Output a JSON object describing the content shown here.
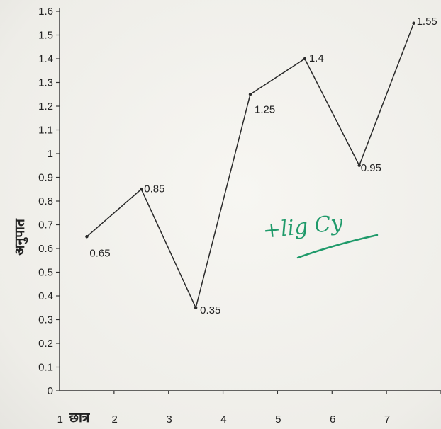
{
  "chart_data": {
    "type": "line",
    "title": "",
    "xlabel": "छात्र",
    "ylabel": "अनुपात",
    "x_ticks": [
      "1",
      "2",
      "3",
      "4",
      "5",
      "6",
      "7"
    ],
    "x": [
      0.5,
      1.5,
      2.5,
      3.5,
      4.5,
      5.5,
      6.5
    ],
    "xlim": [
      0,
      7
    ],
    "y_ticks": [
      "0",
      "0.1",
      "0.2",
      "0.3",
      "0.4",
      "0.5",
      "0.6",
      "0.7",
      "0.8",
      "0.9",
      "1",
      "1.1",
      "1.2",
      "1.3",
      "1.4",
      "1.5",
      "1.6"
    ],
    "ylim": [
      0,
      1.6
    ],
    "series": [
      {
        "values": [
          0.65,
          0.85,
          0.35,
          1.25,
          1.4,
          0.95,
          1.55
        ],
        "labels": [
          "0.65",
          "0.85",
          "0.35",
          "1.25",
          "1.4",
          "0.95",
          "1.55"
        ]
      }
    ],
    "grid": false,
    "line_color": "#2a2a2a",
    "annotation_text": "+lig Cy",
    "annotation_color": "#1f9a6a"
  }
}
